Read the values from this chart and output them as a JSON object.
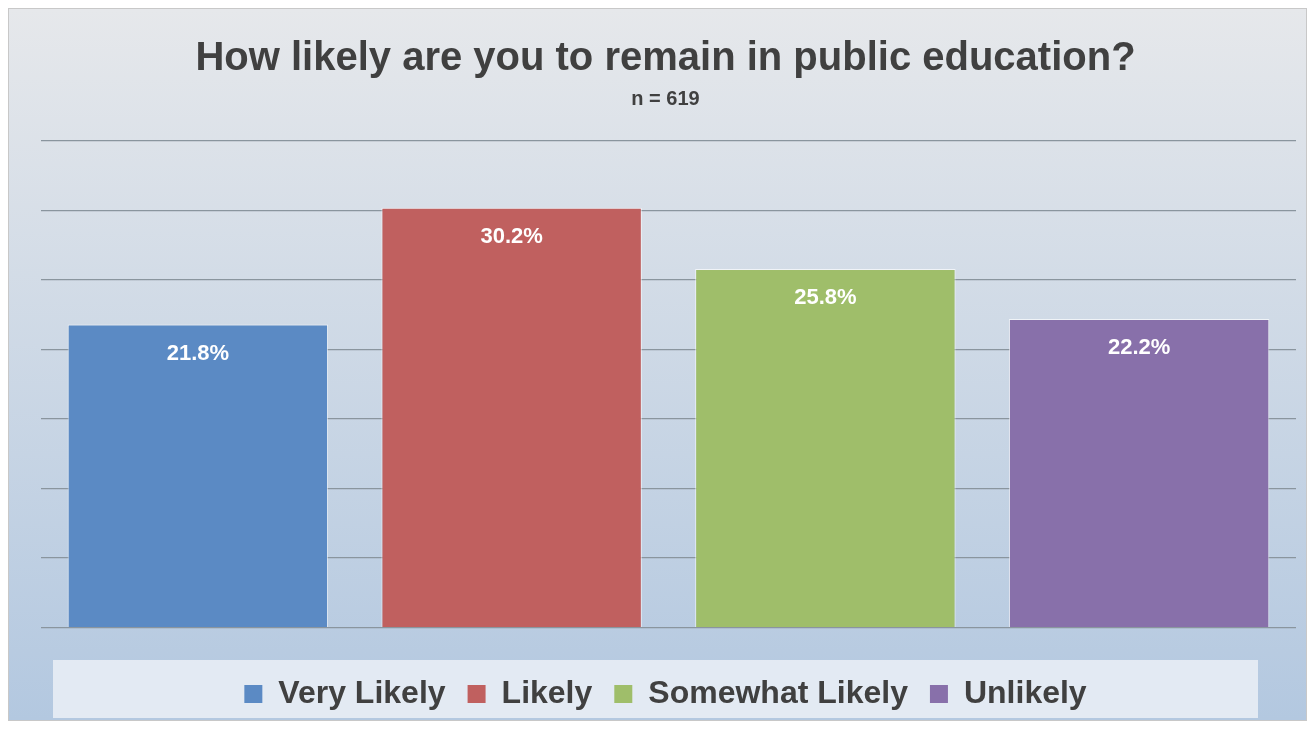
{
  "chart_data": {
    "type": "bar",
    "title": "How likely are you to remain in public education?",
    "subtitle": "n = 619",
    "categories": [
      null,
      null,
      null,
      null
    ],
    "series": [
      {
        "name": "Very Likely",
        "color": "#5b8ac4",
        "values": [
          21.8,
          null,
          null,
          null
        ],
        "value_labels": [
          "21.8%",
          null,
          null,
          null
        ]
      },
      {
        "name": "Likely",
        "color": "#c0605f",
        "values": [
          null,
          30.2,
          null,
          null
        ],
        "value_labels": [
          null,
          "30.2%",
          null,
          null
        ]
      },
      {
        "name": "Somewhat Likely",
        "color": "#9fbe6a",
        "values": [
          null,
          null,
          25.8,
          null
        ],
        "value_labels": [
          null,
          null,
          "25.8%",
          null
        ]
      },
      {
        "name": "Unlikely",
        "color": "#8870aa",
        "values": [
          null,
          null,
          null,
          22.2
        ],
        "value_labels": [
          null,
          null,
          null,
          "22.2%"
        ]
      }
    ],
    "ylim": [
      0,
      35
    ],
    "yticks": [
      {
        "value": 0,
        "label": null
      },
      {
        "value": 5,
        "label": null
      },
      {
        "value": 10,
        "label": null
      },
      {
        "value": 15,
        "label": null
      },
      {
        "value": 20,
        "label": null
      },
      {
        "value": 25,
        "label": null
      },
      {
        "value": 30,
        "label": null
      },
      {
        "value": 35,
        "label": null
      }
    ],
    "grid": "y",
    "legend": "bottom",
    "stacked": true
  }
}
